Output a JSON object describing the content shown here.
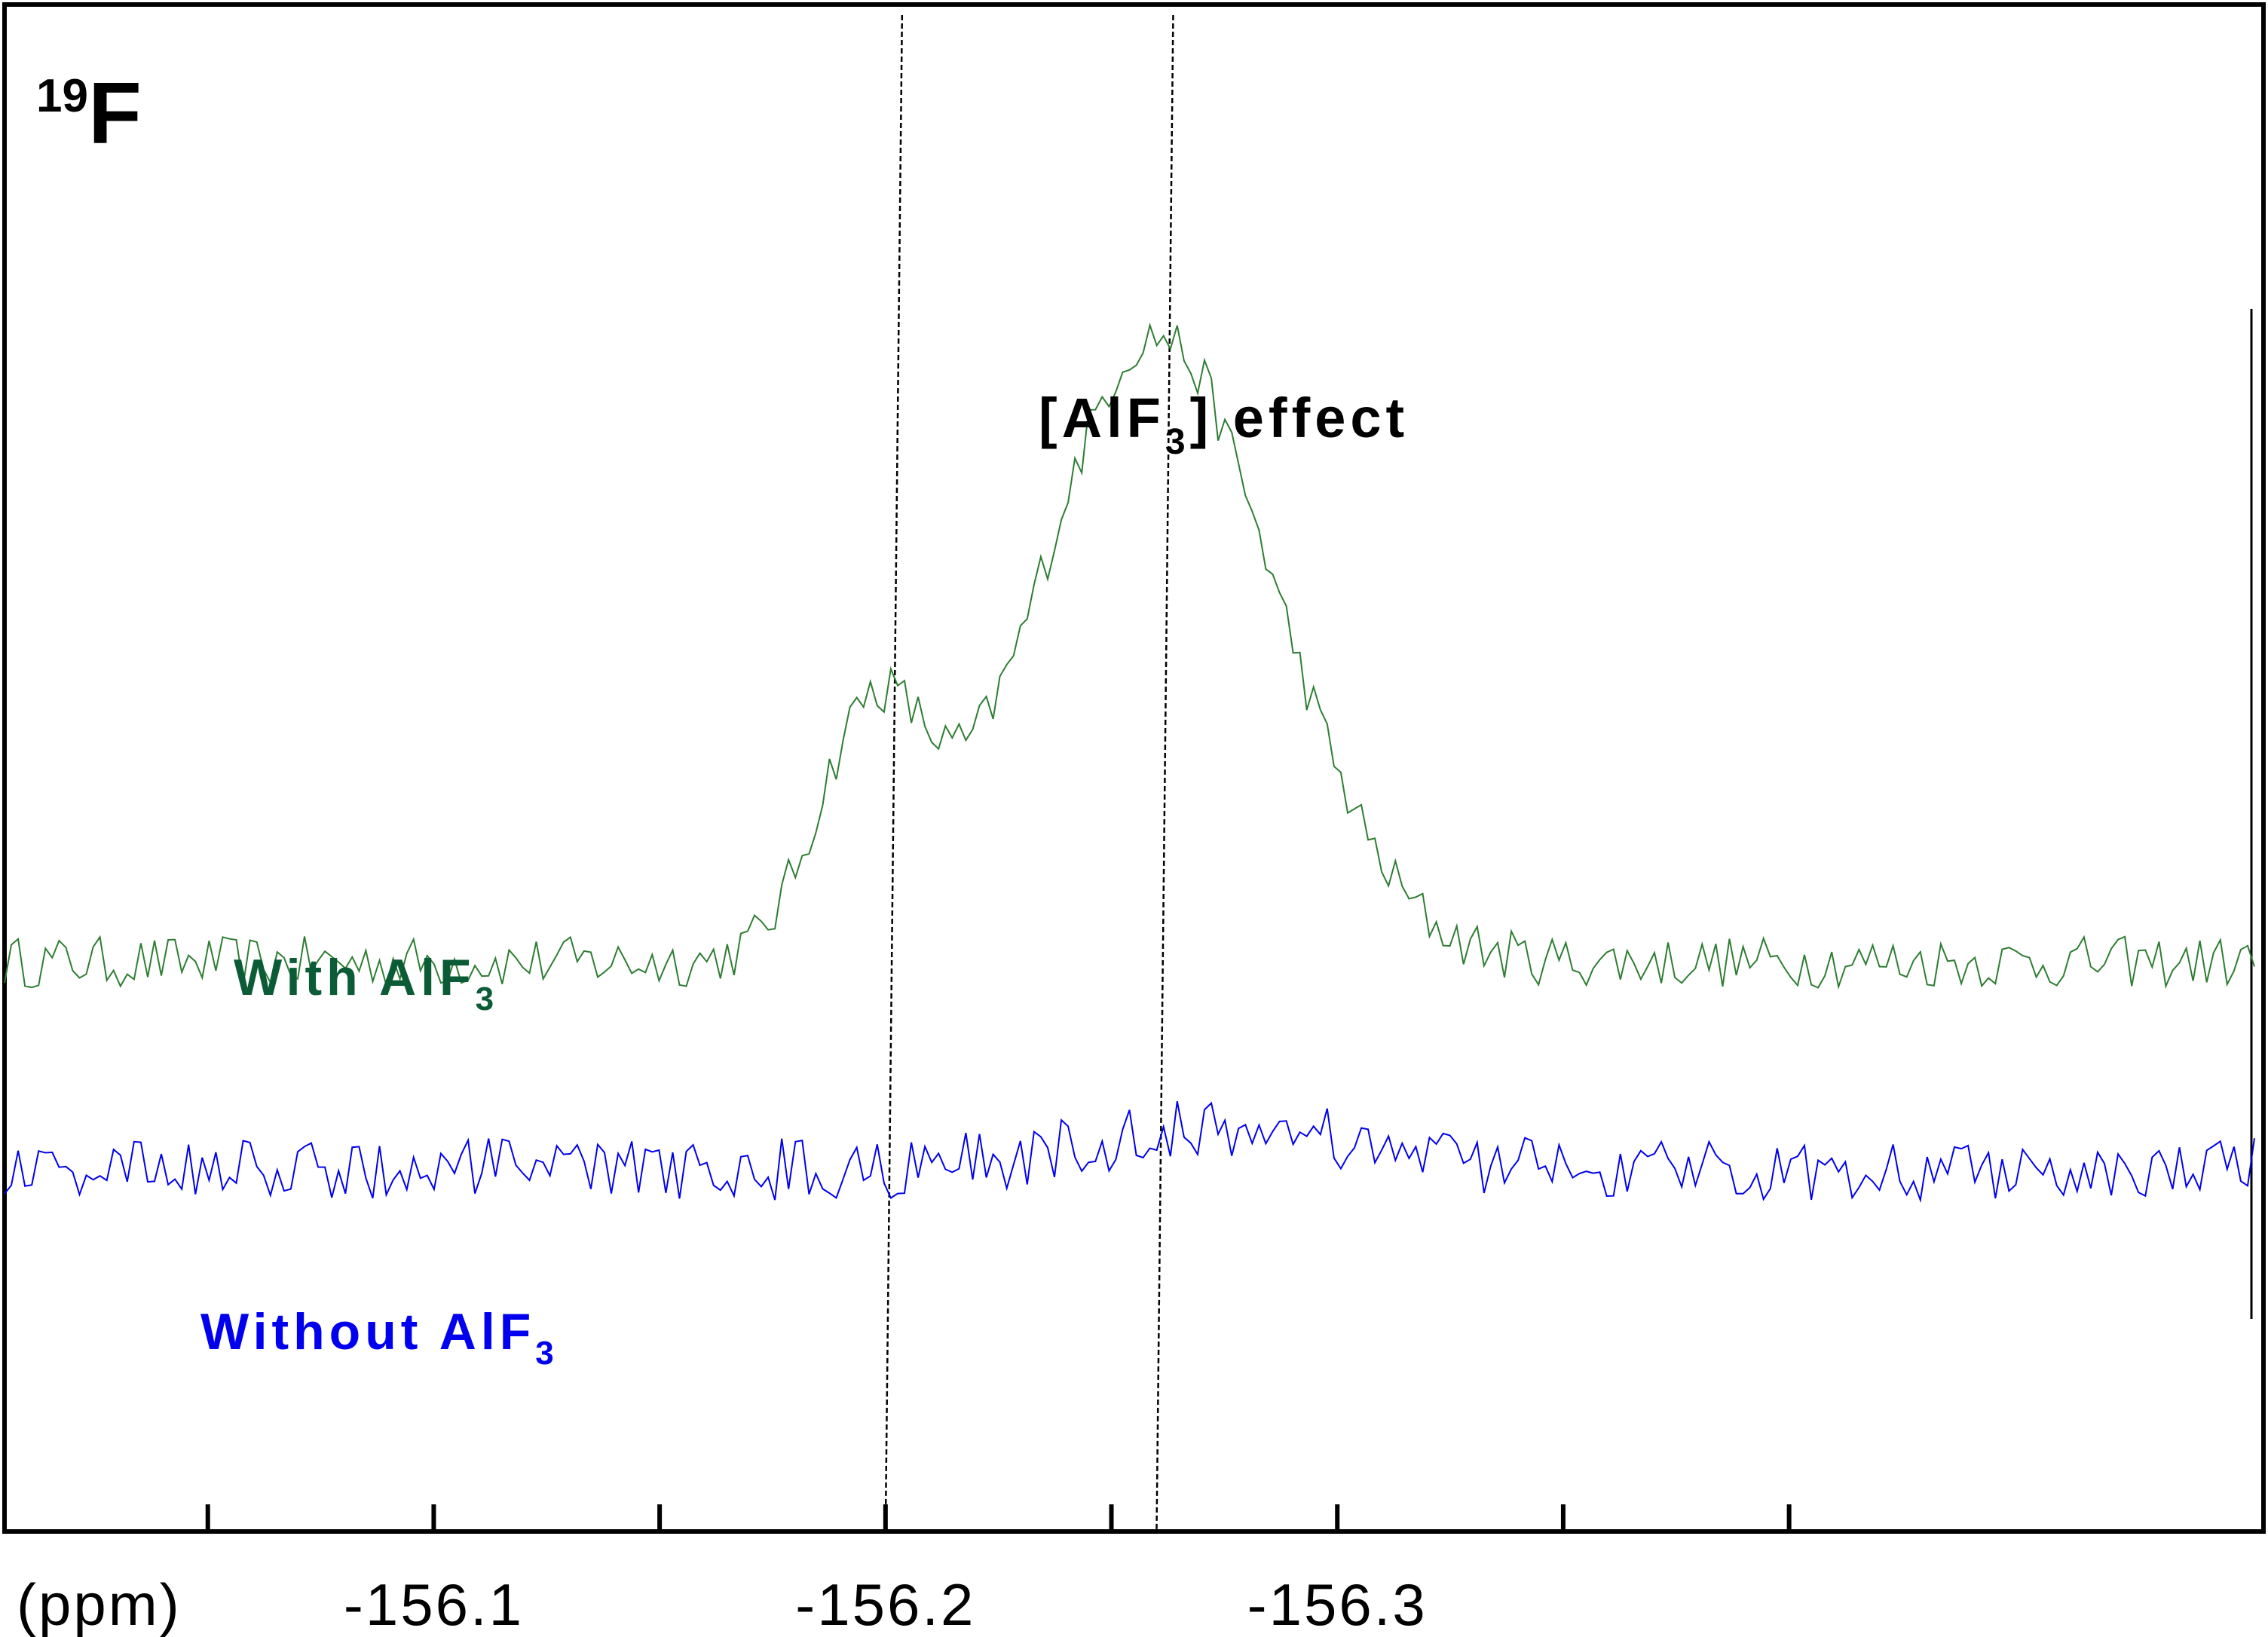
{
  "chart_data": {
    "type": "line",
    "nucleus": {
      "mass": "19",
      "symbol": "F"
    },
    "x_axis": {
      "unit_label": "(ppm)",
      "reversed": true,
      "range": [
        -156.005,
        -156.505
      ],
      "tick_labels": [
        "-156.1",
        "-156.2",
        "-156.3"
      ],
      "major_ticks": [
        -156.05,
        -156.1,
        -156.15,
        -156.2,
        -156.25,
        -156.3,
        -156.35,
        -156.4
      ]
    },
    "annotation": {
      "prefix": "[AlF",
      "sub": "3",
      "suffix": "] effect"
    },
    "reference_lines_ppm": [
      -156.2,
      -156.26
    ],
    "series": [
      {
        "name": {
          "prefix": "With AlF",
          "sub": "3"
        },
        "color": "#2e7d32",
        "label_color": "#0b5c36",
        "baseline": 0.0,
        "noise_amplitude": 0.1,
        "peaks": [
          {
            "center_ppm": -156.197,
            "height": 0.92,
            "width_ppm": 0.012
          },
          {
            "center_ppm": -156.26,
            "height": 2.42,
            "width_ppm": 0.026
          }
        ],
        "x_start": -156.005,
        "x_end": -156.503
      },
      {
        "name": {
          "prefix": "Without AlF",
          "sub": "3"
        },
        "color": "#0000ee",
        "label_color": "#0000ee",
        "baseline": -0.8,
        "noise_amplitude": 0.12,
        "peaks": [
          {
            "center_ppm": -156.275,
            "height": 0.16,
            "width_ppm": 0.03
          }
        ],
        "x_start": -156.005,
        "x_end": -156.503
      }
    ],
    "y_range": [
      -2.2,
      3.7
    ]
  }
}
